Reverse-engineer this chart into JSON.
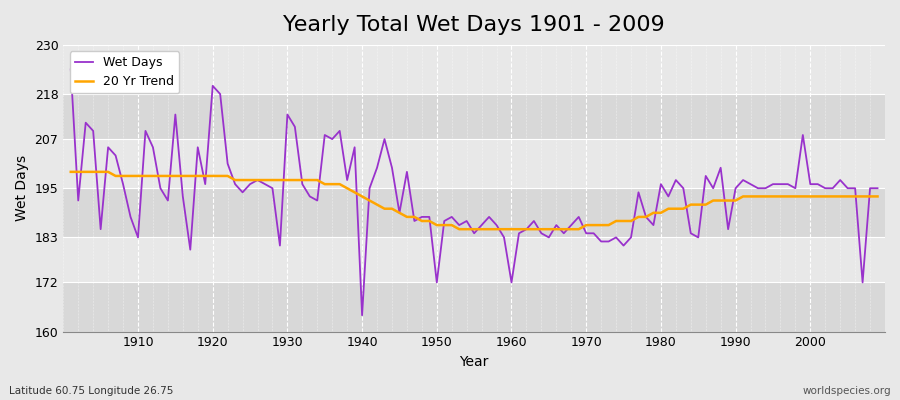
{
  "title": "Yearly Total Wet Days 1901 - 2009",
  "xlabel": "Year",
  "ylabel": "Wet Days",
  "subtitle": "Latitude 60.75 Longitude 26.75",
  "watermark": "worldspecies.org",
  "years": [
    1901,
    1902,
    1903,
    1904,
    1905,
    1906,
    1907,
    1908,
    1909,
    1910,
    1911,
    1912,
    1913,
    1914,
    1915,
    1916,
    1917,
    1918,
    1919,
    1920,
    1921,
    1922,
    1923,
    1924,
    1925,
    1926,
    1927,
    1928,
    1929,
    1930,
    1931,
    1932,
    1933,
    1934,
    1935,
    1936,
    1937,
    1938,
    1939,
    1940,
    1941,
    1942,
    1943,
    1944,
    1945,
    1946,
    1947,
    1948,
    1949,
    1950,
    1951,
    1952,
    1953,
    1954,
    1955,
    1956,
    1957,
    1958,
    1959,
    1960,
    1961,
    1962,
    1963,
    1964,
    1965,
    1966,
    1967,
    1968,
    1969,
    1970,
    1971,
    1972,
    1973,
    1974,
    1975,
    1976,
    1977,
    1978,
    1979,
    1980,
    1981,
    1982,
    1983,
    1984,
    1985,
    1986,
    1987,
    1988,
    1989,
    1990,
    1991,
    1992,
    1993,
    1994,
    1995,
    1996,
    1997,
    1998,
    1999,
    2000,
    2001,
    2002,
    2003,
    2004,
    2005,
    2006,
    2007,
    2008,
    2009
  ],
  "wet_days": [
    224,
    192,
    211,
    209,
    185,
    205,
    203,
    196,
    188,
    183,
    209,
    205,
    195,
    192,
    213,
    193,
    180,
    205,
    196,
    220,
    218,
    201,
    196,
    194,
    196,
    197,
    196,
    195,
    181,
    213,
    210,
    196,
    193,
    192,
    208,
    207,
    209,
    197,
    205,
    164,
    195,
    200,
    207,
    200,
    189,
    199,
    187,
    188,
    188,
    172,
    187,
    188,
    186,
    187,
    184,
    186,
    188,
    186,
    183,
    172,
    184,
    185,
    187,
    184,
    183,
    186,
    184,
    186,
    188,
    184,
    184,
    182,
    182,
    183,
    181,
    183,
    194,
    188,
    186,
    196,
    193,
    197,
    195,
    184,
    183,
    198,
    195,
    200,
    185,
    195,
    197,
    196,
    195,
    195,
    196,
    196,
    196,
    195,
    208,
    196,
    196,
    195,
    195,
    197,
    195,
    195,
    172,
    195,
    195
  ],
  "trend_values": [
    199,
    199,
    199,
    199,
    199,
    199,
    198,
    198,
    198,
    198,
    198,
    198,
    198,
    198,
    198,
    198,
    198,
    198,
    198,
    198,
    198,
    198,
    197,
    197,
    197,
    197,
    197,
    197,
    197,
    197,
    197,
    197,
    197,
    197,
    196,
    196,
    196,
    195,
    194,
    193,
    192,
    191,
    190,
    190,
    189,
    188,
    188,
    187,
    187,
    186,
    186,
    186,
    185,
    185,
    185,
    185,
    185,
    185,
    185,
    185,
    185,
    185,
    185,
    185,
    185,
    185,
    185,
    185,
    185,
    186,
    186,
    186,
    186,
    187,
    187,
    187,
    188,
    188,
    189,
    189,
    190,
    190,
    190,
    191,
    191,
    191,
    192,
    192,
    192,
    192,
    193,
    193,
    193,
    193,
    193,
    193,
    193,
    193,
    193,
    193,
    193,
    193,
    193,
    193,
    193,
    193,
    193,
    193,
    193
  ],
  "wet_days_color": "#9932CC",
  "trend_color": "#FFA500",
  "bg_color": "#e8e8e8",
  "plot_bg_color_light": "#e8e8e8",
  "plot_bg_color_dark": "#d8d8d8",
  "ylim": [
    160,
    230
  ],
  "yticks": [
    160,
    172,
    183,
    195,
    207,
    218,
    230
  ],
  "xticks": [
    1910,
    1920,
    1930,
    1940,
    1950,
    1960,
    1970,
    1980,
    1990,
    2000
  ],
  "title_fontsize": 16,
  "label_fontsize": 10,
  "legend_fontsize": 9,
  "linewidth_wet": 1.3,
  "linewidth_trend": 1.8
}
